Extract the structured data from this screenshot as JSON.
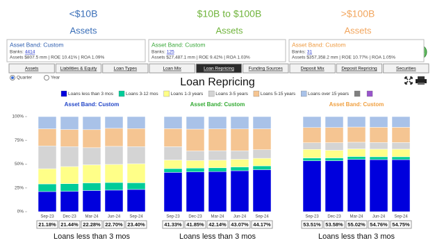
{
  "header": [
    {
      "line1": "<$10B",
      "line2": "Assets",
      "color": "#3a6fb8"
    },
    {
      "line1": "$10B to $100B",
      "line2": "Assets",
      "color": "#70b43c"
    },
    {
      "line1": ">$100B",
      "line2": "Assets",
      "color": "#f2a65e"
    }
  ],
  "info_boxes": [
    {
      "title": "Asset Band: Custom",
      "banks_label": "Banks:",
      "banks": "4414",
      "stats": "Assets $807.5 mm  |  ROE 10.41%  |  ROA 1.09%",
      "color": "#2f5fb0"
    },
    {
      "title": "Asset Band: Custom",
      "banks_label": "Banks:",
      "banks": "125",
      "stats": "Assets $27,487.1 mm  |  ROE 9.42%  |  ROA 1.03%",
      "color": "#3aa83a"
    },
    {
      "title": "Asset Band: Custom",
      "banks_label": "Banks:",
      "banks": "31",
      "stats": "Assets $357,358.2 mm  |  ROE 10.77%  |  ROA 1.05%",
      "color": "#ee9a40"
    }
  ],
  "tabs": [
    "Assets",
    "Liabilities & Equity",
    "Loan Types",
    "Loan Mix",
    "Loan Repricing",
    "Funding Sources",
    "Deposit Mix",
    "Deposit Repricing",
    "Securities"
  ],
  "active_tab": 4,
  "period_options": [
    "Quarter",
    "Year"
  ],
  "selected_period": 0,
  "title": "Loan Repricing",
  "chart_data": [
    {
      "type": "stacked_bar",
      "subtitle": "Asset Band: Custom",
      "subtitle_color": "#2346c8",
      "categories": [
        "Sep-23",
        "Dec-23",
        "Mar-24",
        "Jun-24",
        "Sep-24"
      ],
      "ylim": [
        0,
        100
      ],
      "yticks": [
        {
          "value": 0,
          "label": "0%"
        },
        {
          "value": 25,
          "label": "25%"
        },
        {
          "value": 50,
          "label": "50%"
        },
        {
          "value": 75,
          "label": "75%"
        },
        {
          "value": 100,
          "label": "100%"
        }
      ],
      "series": [
        {
          "name": "Loans less than 3 mos",
          "color": "#0000dd",
          "values": [
            21.18,
            21.44,
            22.28,
            22.7,
            23.4
          ],
          "value_labels": [
            "21.18%",
            "21.44%",
            "22.28%",
            "22.70%",
            "23.40%"
          ]
        },
        {
          "name": "Loans 3-12 mos",
          "color": "#00cc99",
          "values": [
            8,
            8,
            8,
            8,
            7
          ]
        },
        {
          "name": "Loans 1-3 years",
          "color": "#ffff88",
          "values": [
            16,
            18,
            19,
            19,
            20
          ]
        },
        {
          "name": "Loans 3-5 years",
          "color": "#d4d4d4",
          "values": [
            24,
            21,
            18,
            19,
            18
          ]
        },
        {
          "name": "Loans 5-15 years",
          "color": "#f5c592",
          "values": [
            18,
            18,
            19,
            19,
            19
          ]
        },
        {
          "name": "Loans over 15 years",
          "color": "#a9c2e8",
          "values": [
            12.82,
            13.56,
            13.72,
            12.3,
            12.6
          ]
        },
        {
          "color": "#808080"
        },
        {
          "color": "#9955cc"
        }
      ],
      "xlabel": "Loans less than 3 mos"
    },
    {
      "type": "stacked_bar",
      "subtitle": "Asset Band: Custom",
      "subtitle_color": "#33aa33",
      "categories": [
        "Sep-23",
        "Dec-23",
        "Mar-24",
        "Jun-24",
        "Sep-24"
      ],
      "ylim": [
        0,
        100
      ],
      "series": [
        {
          "name": "Loans less than 3 mos",
          "color": "#0000dd",
          "values": [
            41.33,
            41.85,
            42.14,
            43.07,
            44.17
          ],
          "value_labels": [
            "41.33%",
            "41.85%",
            "42.14%",
            "43.07%",
            "44.17%"
          ]
        },
        {
          "name": "Loans 3-12 mos",
          "color": "#00cc99",
          "values": [
            4,
            4,
            4,
            4,
            4
          ]
        },
        {
          "name": "Loans 1-3 years",
          "color": "#ffff88",
          "values": [
            9,
            8,
            8,
            8,
            8
          ]
        },
        {
          "name": "Loans 3-5 years",
          "color": "#d4d4d4",
          "values": [
            14,
            10,
            10,
            9,
            9
          ]
        },
        {
          "name": "Loans 5-15 years",
          "color": "#f5c592",
          "values": [
            19,
            23,
            23,
            23,
            22
          ]
        },
        {
          "name": "Loans over 15 years",
          "color": "#a9c2e8",
          "values": [
            12.67,
            13.15,
            12.86,
            12.93,
            12.83
          ]
        },
        {
          "color": "#808080"
        },
        {
          "color": "#9955cc"
        }
      ],
      "xlabel": "Loans less than 3 mos"
    },
    {
      "type": "stacked_bar",
      "subtitle": "Asset Band: Custom",
      "subtitle_color": "#f0a040",
      "categories": [
        "Sep-23",
        "Dec-23",
        "Mar-24",
        "Jun-24",
        "Sep-24"
      ],
      "ylim": [
        0,
        100
      ],
      "series": [
        {
          "name": "Loans less than 3 mos",
          "color": "#0000dd",
          "values": [
            53.51,
            53.58,
            55.02,
            54.76,
            54.75
          ],
          "value_labels": [
            "53.51%",
            "53.58%",
            "55.02%",
            "54.76%",
            "54.75%"
          ]
        },
        {
          "name": "Loans 3-12 mos",
          "color": "#00cc99",
          "values": [
            3,
            3,
            3,
            3,
            3
          ]
        },
        {
          "name": "Loans 1-3 years",
          "color": "#ffff88",
          "values": [
            9,
            8,
            8,
            8,
            8
          ]
        },
        {
          "name": "Loans 3-5 years",
          "color": "#d4d4d4",
          "values": [
            7,
            8,
            7,
            7,
            7
          ]
        },
        {
          "name": "Loans 5-15 years",
          "color": "#f5c592",
          "values": [
            16,
            16,
            16,
            16,
            16
          ]
        },
        {
          "name": "Loans over 15 years",
          "color": "#a9c2e8",
          "values": [
            11.49,
            11.42,
            10.98,
            11.24,
            11.25
          ]
        },
        {
          "color": "#808080"
        },
        {
          "color": "#9955cc"
        }
      ],
      "xlabel": "Loans less than 3 mos"
    }
  ]
}
